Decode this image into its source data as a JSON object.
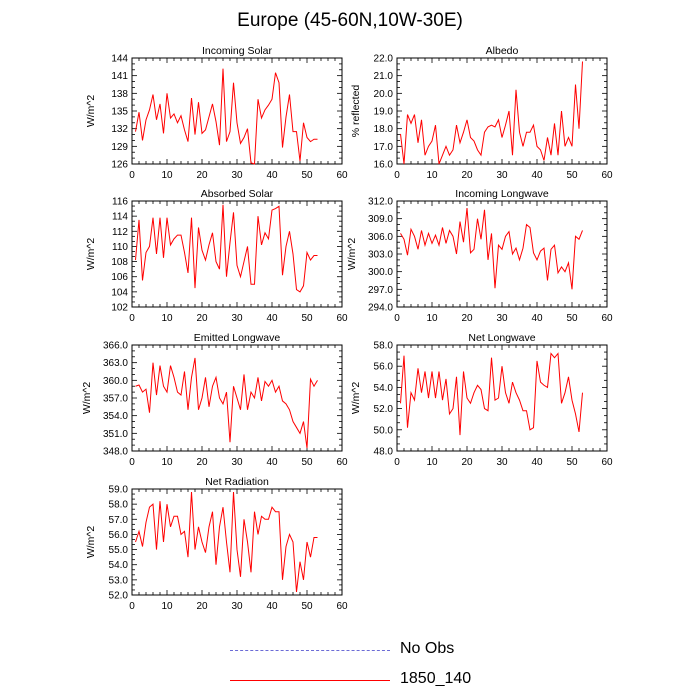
{
  "title": "Europe (45-60N,10W-30E)",
  "legend": {
    "items": [
      {
        "label": "No Obs",
        "style": "dashed",
        "color": "#6b6bd6"
      },
      {
        "label": "1850_140",
        "style": "solid",
        "color": "#ff0000"
      }
    ]
  },
  "chart_data": [
    {
      "type": "line",
      "title": "Incoming Solar",
      "xlabel": "",
      "ylabel": "W/m^2",
      "xlim": [
        0,
        60
      ],
      "ylim": [
        126,
        144
      ],
      "xticks": [
        "0",
        "10",
        "20",
        "30",
        "40",
        "50",
        "60"
      ],
      "yticks": [
        "126",
        "129",
        "132",
        "135",
        "138",
        "141",
        "144"
      ],
      "series": [
        {
          "name": "1850_140",
          "color": "#ff0000",
          "x": [
            1,
            2,
            3,
            4,
            5,
            6,
            7,
            8,
            9,
            10,
            11,
            12,
            13,
            14,
            15,
            16,
            17,
            18,
            19,
            20,
            21,
            22,
            23,
            24,
            25,
            26,
            27,
            28,
            29,
            30,
            31,
            32,
            33,
            34,
            35,
            36,
            37,
            38,
            39,
            40,
            41,
            42,
            43,
            44,
            45,
            46,
            47,
            48,
            49,
            50,
            51,
            52,
            53
          ],
          "values": [
            131.5,
            134.8,
            130.0,
            133.5,
            135.2,
            137.8,
            133.5,
            136.2,
            131.2,
            138.0,
            133.8,
            134.5,
            133.0,
            134.2,
            131.8,
            129.8,
            137.2,
            131.0,
            136.5,
            131.2,
            131.8,
            134.0,
            136.2,
            133.2,
            129.2,
            142.2,
            129.8,
            131.5,
            139.8,
            133.0,
            129.5,
            130.5,
            132.0,
            126.2,
            126.0,
            137.0,
            133.8,
            135.2,
            136.0,
            137.0,
            141.5,
            139.8,
            128.8,
            134.0,
            137.8,
            131.5,
            131.5,
            126.5,
            133.0,
            130.5,
            129.8,
            130.2,
            130.2
          ]
        }
      ]
    },
    {
      "type": "line",
      "title": "Albedo",
      "xlabel": "",
      "ylabel": "% reflected",
      "xlim": [
        0,
        60
      ],
      "ylim": [
        16.0,
        22.0
      ],
      "xticks": [
        "0",
        "10",
        "20",
        "30",
        "40",
        "50",
        "60"
      ],
      "yticks": [
        "16.0",
        "17.0",
        "18.0",
        "19.0",
        "20.0",
        "21.0",
        "22.0"
      ],
      "series": [
        {
          "name": "1850_140",
          "color": "#ff0000",
          "x": [
            1,
            2,
            3,
            4,
            5,
            6,
            7,
            8,
            9,
            10,
            11,
            12,
            13,
            14,
            15,
            16,
            17,
            18,
            19,
            20,
            21,
            22,
            23,
            24,
            25,
            26,
            27,
            28,
            29,
            30,
            31,
            32,
            33,
            34,
            35,
            36,
            37,
            38,
            39,
            40,
            41,
            42,
            43,
            44,
            45,
            46,
            47,
            48,
            49,
            50,
            51,
            52,
            53
          ],
          "values": [
            17.7,
            16.0,
            18.8,
            18.3,
            18.8,
            17.2,
            18.5,
            16.5,
            17.0,
            17.3,
            18.2,
            16.0,
            16.5,
            17.0,
            16.5,
            16.8,
            18.2,
            17.2,
            17.8,
            18.5,
            17.5,
            17.3,
            16.8,
            16.5,
            17.8,
            18.1,
            18.2,
            18.1,
            18.5,
            17.5,
            18.2,
            19.0,
            16.5,
            20.2,
            17.8,
            17.0,
            17.8,
            17.8,
            18.2,
            17.0,
            16.8,
            16.2,
            17.5,
            16.5,
            18.3,
            16.5,
            19.0,
            17.0,
            17.5,
            17.0,
            20.5,
            18.0,
            21.8
          ]
        }
      ]
    },
    {
      "type": "line",
      "title": "Absorbed Solar",
      "xlabel": "",
      "ylabel": "W/m^2",
      "xlim": [
        0,
        60
      ],
      "ylim": [
        102,
        116
      ],
      "xticks": [
        "0",
        "10",
        "20",
        "30",
        "40",
        "50",
        "60"
      ],
      "yticks": [
        "102",
        "104",
        "106",
        "108",
        "110",
        "112",
        "114",
        "116"
      ],
      "series": [
        {
          "name": "1850_140",
          "color": "#ff0000",
          "x": [
            1,
            2,
            3,
            4,
            5,
            6,
            7,
            8,
            9,
            10,
            11,
            12,
            13,
            14,
            15,
            16,
            17,
            18,
            19,
            20,
            21,
            22,
            23,
            24,
            25,
            26,
            27,
            28,
            29,
            30,
            31,
            32,
            33,
            34,
            35,
            36,
            37,
            38,
            39,
            40,
            41,
            42,
            43,
            44,
            45,
            46,
            47,
            48,
            49,
            50,
            51,
            52,
            53
          ],
          "values": [
            108.2,
            113.5,
            105.5,
            109.2,
            110.0,
            113.8,
            109.0,
            113.8,
            108.5,
            113.8,
            110.2,
            111.0,
            111.5,
            111.5,
            109.2,
            106.5,
            113.8,
            104.5,
            112.5,
            109.5,
            108.2,
            110.2,
            111.8,
            108.0,
            107.0,
            115.5,
            106.0,
            110.5,
            114.5,
            107.5,
            106.0,
            108.0,
            110.0,
            105.0,
            105.0,
            114.0,
            110.2,
            111.8,
            111.0,
            114.8,
            115.0,
            115.3,
            106.2,
            110.0,
            112.0,
            109.0,
            104.3,
            104.0,
            104.8,
            109.2,
            108.2,
            108.8,
            108.8
          ]
        }
      ]
    },
    {
      "type": "line",
      "title": "Incoming Longwave",
      "xlabel": "",
      "ylabel": "W/m^2",
      "xlim": [
        0,
        60
      ],
      "ylim": [
        294.0,
        312.0
      ],
      "xticks": [
        "0",
        "10",
        "20",
        "30",
        "40",
        "50",
        "60"
      ],
      "yticks": [
        "294.0",
        "297.0",
        "300.0",
        "303.0",
        "306.0",
        "309.0",
        "312.0"
      ],
      "series": [
        {
          "name": "1850_140",
          "color": "#ff0000",
          "x": [
            1,
            2,
            3,
            4,
            5,
            6,
            7,
            8,
            9,
            10,
            11,
            12,
            13,
            14,
            15,
            16,
            17,
            18,
            19,
            20,
            21,
            22,
            23,
            24,
            25,
            26,
            27,
            28,
            29,
            30,
            31,
            32,
            33,
            34,
            35,
            36,
            37,
            38,
            39,
            40,
            41,
            42,
            43,
            44,
            45,
            46,
            47,
            48,
            49,
            50,
            51,
            52,
            53
          ],
          "values": [
            306.5,
            305.5,
            302.8,
            307.2,
            306.0,
            303.8,
            307.0,
            304.5,
            306.5,
            304.8,
            306.2,
            304.5,
            307.5,
            304.8,
            307.0,
            306.0,
            303.0,
            308.5,
            305.0,
            310.8,
            303.2,
            303.8,
            309.0,
            305.5,
            310.5,
            302.0,
            306.5,
            297.2,
            304.5,
            303.8,
            306.0,
            306.8,
            303.0,
            304.0,
            302.0,
            304.0,
            308.0,
            307.5,
            303.2,
            302.0,
            303.5,
            304.0,
            298.5,
            303.8,
            304.5,
            299.8,
            300.8,
            300.0,
            301.5,
            297.0,
            306.0,
            305.5,
            307.0
          ]
        }
      ]
    },
    {
      "type": "line",
      "title": "Emitted Longwave",
      "xlabel": "",
      "ylabel": "W/m^2",
      "xlim": [
        0,
        60
      ],
      "ylim": [
        348.0,
        366.0
      ],
      "xticks": [
        "0",
        "10",
        "20",
        "30",
        "40",
        "50",
        "60"
      ],
      "yticks": [
        "348.0",
        "351.0",
        "354.0",
        "357.0",
        "360.0",
        "363.0",
        "366.0"
      ],
      "series": [
        {
          "name": "1850_140",
          "color": "#ff0000",
          "x": [
            1,
            2,
            3,
            4,
            5,
            6,
            7,
            8,
            9,
            10,
            11,
            12,
            13,
            14,
            15,
            16,
            17,
            18,
            19,
            20,
            21,
            22,
            23,
            24,
            25,
            26,
            27,
            28,
            29,
            30,
            31,
            32,
            33,
            34,
            35,
            36,
            37,
            38,
            39,
            40,
            41,
            42,
            43,
            44,
            45,
            46,
            47,
            48,
            49,
            50,
            51,
            52,
            53
          ],
          "values": [
            359.0,
            359.2,
            358.0,
            358.5,
            354.5,
            363.0,
            357.5,
            362.5,
            359.0,
            358.0,
            362.5,
            360.5,
            358.0,
            357.5,
            361.5,
            355.0,
            360.5,
            363.8,
            355.0,
            357.0,
            360.5,
            355.5,
            359.0,
            360.5,
            357.0,
            356.0,
            358.0,
            349.5,
            359.0,
            357.0,
            355.0,
            361.0,
            355.0,
            358.0,
            357.0,
            360.5,
            356.5,
            359.8,
            359.0,
            360.0,
            358.0,
            359.0,
            356.5,
            356.0,
            355.0,
            353.0,
            352.0,
            351.0,
            353.0,
            348.5,
            360.2,
            359.0,
            360.0
          ]
        }
      ]
    },
    {
      "type": "line",
      "title": "Net Longwave",
      "xlabel": "",
      "ylabel": "W/m^2",
      "xlim": [
        0,
        60
      ],
      "ylim": [
        48.0,
        58.0
      ],
      "xticks": [
        "0",
        "10",
        "20",
        "30",
        "40",
        "50",
        "60"
      ],
      "yticks": [
        "48.0",
        "50.0",
        "52.0",
        "54.0",
        "56.0",
        "58.0"
      ],
      "series": [
        {
          "name": "1850_140",
          "color": "#ff0000",
          "x": [
            1,
            2,
            3,
            4,
            5,
            6,
            7,
            8,
            9,
            10,
            11,
            12,
            13,
            14,
            15,
            16,
            17,
            18,
            19,
            20,
            21,
            22,
            23,
            24,
            25,
            26,
            27,
            28,
            29,
            30,
            31,
            32,
            33,
            34,
            35,
            36,
            37,
            38,
            39,
            40,
            41,
            42,
            43,
            44,
            45,
            46,
            47,
            48,
            49,
            50,
            51,
            52,
            53
          ],
          "values": [
            52.5,
            57.0,
            50.2,
            53.5,
            52.8,
            55.8,
            53.5,
            55.5,
            53.0,
            55.5,
            53.0,
            55.5,
            52.8,
            54.8,
            51.5,
            52.0,
            55.0,
            49.5,
            55.5,
            53.0,
            52.5,
            53.5,
            54.2,
            53.8,
            52.0,
            51.8,
            56.8,
            52.8,
            53.0,
            56.0,
            53.5,
            52.5,
            54.5,
            53.5,
            52.8,
            51.8,
            51.8,
            50.0,
            50.2,
            56.5,
            54.5,
            54.2,
            54.0,
            57.2,
            56.8,
            57.2,
            52.5,
            53.5,
            55.0,
            52.8,
            51.5,
            49.8,
            53.5
          ]
        }
      ]
    },
    {
      "type": "line",
      "title": "Net Radiation",
      "xlabel": "",
      "ylabel": "W/m^2",
      "xlim": [
        0,
        60
      ],
      "ylim": [
        52.0,
        59.0
      ],
      "xticks": [
        "0",
        "10",
        "20",
        "30",
        "40",
        "50",
        "60"
      ],
      "yticks": [
        "52.0",
        "53.0",
        "54.0",
        "55.0",
        "56.0",
        "57.0",
        "58.0",
        "59.0"
      ],
      "series": [
        {
          "name": "1850_140",
          "color": "#ff0000",
          "x": [
            1,
            2,
            3,
            4,
            5,
            6,
            7,
            8,
            9,
            10,
            11,
            12,
            13,
            14,
            15,
            16,
            17,
            18,
            19,
            20,
            21,
            22,
            23,
            24,
            25,
            26,
            27,
            28,
            29,
            30,
            31,
            32,
            33,
            34,
            35,
            36,
            37,
            38,
            39,
            40,
            41,
            42,
            43,
            44,
            45,
            46,
            47,
            48,
            49,
            50,
            51,
            52,
            53
          ],
          "values": [
            55.5,
            56.2,
            55.2,
            56.8,
            57.8,
            58.0,
            55.0,
            58.2,
            55.5,
            58.0,
            56.5,
            57.2,
            57.2,
            56.0,
            56.2,
            54.5,
            58.8,
            55.0,
            56.5,
            55.5,
            54.8,
            56.5,
            57.5,
            54.0,
            56.5,
            57.8,
            55.5,
            53.5,
            58.8,
            55.0,
            53.2,
            57.0,
            55.5,
            53.5,
            57.5,
            56.0,
            57.2,
            57.0,
            57.0,
            57.8,
            57.5,
            57.5,
            53.0,
            55.2,
            56.0,
            55.5,
            52.2,
            54.2,
            53.0,
            55.5,
            54.5,
            55.8,
            55.8
          ]
        }
      ]
    }
  ]
}
